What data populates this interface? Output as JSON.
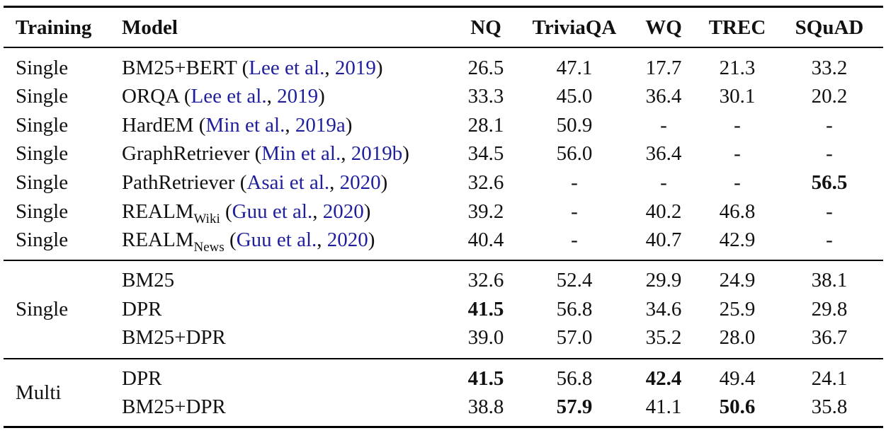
{
  "headers": {
    "training": "Training",
    "model": "Model",
    "nq": "NQ",
    "triviaqa": "TriviaQA",
    "wq": "WQ",
    "trec": "TREC",
    "squad": "SQuAD"
  },
  "rows": [
    {
      "training": "Single",
      "model": "BM25+BERT",
      "sub": "",
      "cite_authors": "Lee et al.",
      "cite_year": "2019",
      "nq": "26.5",
      "triviaqa": "47.1",
      "wq": "17.7",
      "trec": "21.3",
      "squad": "33.2"
    },
    {
      "training": "Single",
      "model": "ORQA",
      "sub": "",
      "cite_authors": "Lee et al.",
      "cite_year": "2019",
      "nq": "33.3",
      "triviaqa": "45.0",
      "wq": "36.4",
      "trec": "30.1",
      "squad": "20.2"
    },
    {
      "training": "Single",
      "model": "HardEM",
      "sub": "",
      "cite_authors": "Min et al.",
      "cite_year": "2019a",
      "nq": "28.1",
      "triviaqa": "50.9",
      "wq": "-",
      "trec": "-",
      "squad": "-"
    },
    {
      "training": "Single",
      "model": "GraphRetriever",
      "sub": "",
      "cite_authors": "Min et al.",
      "cite_year": "2019b",
      "nq": "34.5",
      "triviaqa": "56.0",
      "wq": "36.4",
      "trec": "-",
      "squad": "-"
    },
    {
      "training": "Single",
      "model": "PathRetriever",
      "sub": "",
      "cite_authors": "Asai et al.",
      "cite_year": "2020",
      "nq": "32.6",
      "triviaqa": "-",
      "wq": "-",
      "trec": "-",
      "squad": "56.5"
    },
    {
      "training": "Single",
      "model": "REALM",
      "sub": "Wiki",
      "cite_authors": "Guu et al.",
      "cite_year": "2020",
      "nq": "39.2",
      "triviaqa": "-",
      "wq": "40.2",
      "trec": "46.8",
      "squad": "-"
    },
    {
      "training": "Single",
      "model": "REALM",
      "sub": "News",
      "cite_authors": "Guu et al.",
      "cite_year": "2020",
      "nq": "40.4",
      "triviaqa": "-",
      "wq": "40.7",
      "trec": "42.9",
      "squad": "-"
    }
  ],
  "group_single": {
    "training": "Single",
    "rows": [
      {
        "model": "BM25",
        "nq": "32.6",
        "triviaqa": "52.4",
        "wq": "29.9",
        "trec": "24.9",
        "squad": "38.1"
      },
      {
        "model": "DPR",
        "nq": "41.5",
        "triviaqa": "56.8",
        "wq": "34.6",
        "trec": "25.9",
        "squad": "29.8"
      },
      {
        "model": "BM25+DPR",
        "nq": "39.0",
        "triviaqa": "57.0",
        "wq": "35.2",
        "trec": "28.0",
        "squad": "36.7"
      }
    ]
  },
  "group_multi": {
    "training": "Multi",
    "rows": [
      {
        "model": "DPR",
        "nq": "41.5",
        "triviaqa": "56.8",
        "wq": "42.4",
        "trec": "49.4",
        "squad": "24.1"
      },
      {
        "model": "BM25+DPR",
        "nq": "38.8",
        "triviaqa": "57.9",
        "wq": "41.1",
        "trec": "50.6",
        "squad": "35.8"
      }
    ]
  }
}
